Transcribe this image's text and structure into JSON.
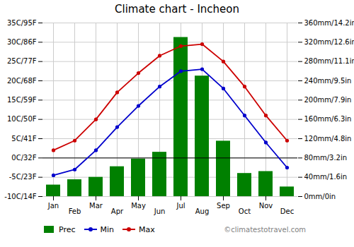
{
  "chart_data": {
    "type": "combo",
    "title": "Climate chart - Incheon",
    "categories": [
      "Jan",
      "Feb",
      "Mar",
      "Apr",
      "May",
      "Jun",
      "Jul",
      "Aug",
      "Sep",
      "Oct",
      "Nov",
      "Dec"
    ],
    "series": [
      {
        "name": "Prec",
        "type": "bar",
        "axis": "y2",
        "color": "#008000",
        "values": [
          24,
          35,
          40,
          62,
          78,
          92,
          330,
          250,
          115,
          48,
          52,
          20
        ]
      },
      {
        "name": "Min",
        "type": "line",
        "marker": "circle",
        "color": "#0000cc",
        "values": [
          -4.5,
          -3.0,
          2.0,
          8.0,
          13.5,
          18.5,
          22.5,
          23.0,
          18.0,
          11.0,
          4.0,
          -2.5
        ]
      },
      {
        "name": "Max",
        "type": "line",
        "marker": "circle",
        "color": "#cc0000",
        "values": [
          2.0,
          4.5,
          10.0,
          17.0,
          22.0,
          26.5,
          29.0,
          29.5,
          25.0,
          18.5,
          11.0,
          4.5
        ]
      }
    ],
    "ylim": [
      -10,
      35
    ],
    "yticks": [
      {
        "value": -10,
        "label": "-10C/14F"
      },
      {
        "value": -5,
        "label": "-5C/23F"
      },
      {
        "value": 0,
        "label": "0C/32F"
      },
      {
        "value": 5,
        "label": "5C/41F"
      },
      {
        "value": 10,
        "label": "10C/50F"
      },
      {
        "value": 15,
        "label": "15C/59F"
      },
      {
        "value": 20,
        "label": "20C/68F"
      },
      {
        "value": 25,
        "label": "25C/77F"
      },
      {
        "value": 30,
        "label": "30C/86F"
      },
      {
        "value": 35,
        "label": "35C/95F"
      }
    ],
    "y2lim": [
      0,
      360
    ],
    "y2ticks": [
      {
        "value": 0,
        "label": "0mm/0in"
      },
      {
        "value": 40,
        "label": "40mm/1.6in"
      },
      {
        "value": 80,
        "label": "80mm/3.2in"
      },
      {
        "value": 120,
        "label": "120mm/4.8in"
      },
      {
        "value": 160,
        "label": "160mm/6.3in"
      },
      {
        "value": 200,
        "label": "200mm/7.9in"
      },
      {
        "value": 240,
        "label": "240mm/9.5in"
      },
      {
        "value": 280,
        "label": "280mm/11.1in"
      },
      {
        "value": 320,
        "label": "320mm/12.6in"
      },
      {
        "value": 360,
        "label": "360mm/14.2in"
      }
    ],
    "reference_lines": [
      {
        "axis": "y",
        "value": 0,
        "color": "black"
      }
    ],
    "grid": true,
    "legend": "lower left",
    "annotations": [
      {
        "text": "©climatestotravel.com"
      }
    ]
  }
}
